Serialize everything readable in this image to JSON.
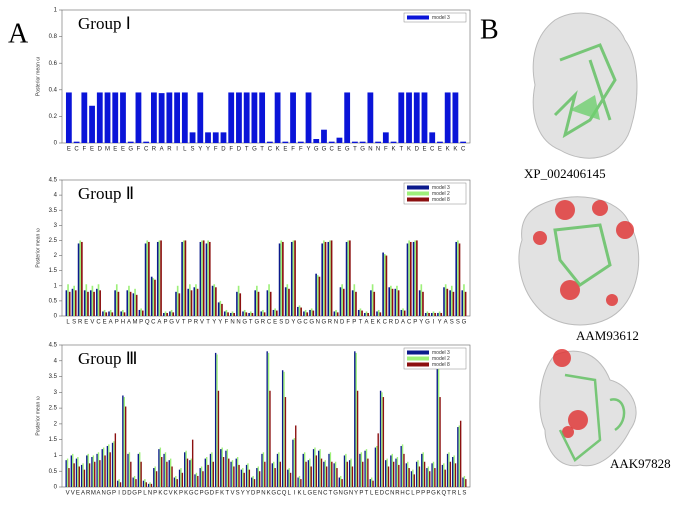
{
  "panel_labels": [
    "A",
    "B"
  ],
  "structures": [
    {
      "label": "XP_002406145"
    },
    {
      "label": "AAM93612"
    },
    {
      "label": "AAK97828"
    }
  ],
  "chart_data": [
    {
      "type": "bar",
      "title": "Group Ⅰ",
      "ylabel": "Posterior mean ω",
      "ylim": [
        0,
        1
      ],
      "yticks": [
        0,
        0.2,
        0.4,
        0.6,
        0.8,
        1
      ],
      "legend": "top-right",
      "categories": [
        "E",
        "C",
        "F",
        "E",
        "D",
        "M",
        "E",
        "E",
        "G",
        "F",
        "C",
        "R",
        "A",
        "R",
        "I",
        "L",
        "S",
        "Y",
        "Y",
        "F",
        "D",
        "F",
        "D",
        "T",
        "G",
        "T",
        "C",
        "K",
        "E",
        "F",
        "F",
        "Y",
        "G",
        "G",
        "C",
        "E",
        "G",
        "T",
        "G",
        "N",
        "N",
        "F",
        "K",
        "T",
        "K",
        "D",
        "E",
        "C",
        "E",
        "K",
        "K",
        "C"
      ],
      "series": [
        {
          "name": "model 3",
          "color": "#0a14d8",
          "values": [
            0.38,
            0.01,
            0.38,
            0.28,
            0.38,
            0.38,
            0.38,
            0.38,
            0.01,
            0.38,
            0.01,
            0.38,
            0.375,
            0.38,
            0.38,
            0.38,
            0.08,
            0.38,
            0.08,
            0.08,
            0.08,
            0.38,
            0.38,
            0.38,
            0.38,
            0.38,
            0.01,
            0.38,
            0.01,
            0.38,
            0.01,
            0.38,
            0.03,
            0.1,
            0.01,
            0.04,
            0.38,
            0.01,
            0.01,
            0.38,
            0.01,
            0.08,
            0.01,
            0.38,
            0.38,
            0.38,
            0.38,
            0.08,
            0.01,
            0.38,
            0.38,
            0.01
          ]
        }
      ]
    },
    {
      "type": "bar",
      "title": "Group Ⅱ",
      "ylabel": "Posterior mean ω",
      "ylim": [
        0,
        4.5
      ],
      "yticks": [
        0,
        0.5,
        1,
        1.5,
        2,
        2.5,
        3,
        3.5,
        4,
        4.5
      ],
      "legend": "top-right",
      "categories": [
        "L",
        "S",
        "R",
        "E",
        "V",
        "C",
        "E",
        "A",
        "P",
        "H",
        "A",
        "M",
        "P",
        "Q",
        "C",
        "A",
        "P",
        "G",
        "V",
        "T",
        "P",
        "R",
        "V",
        "T",
        "Y",
        "Y",
        "F",
        "N",
        "N",
        "G",
        "T",
        "G",
        "R",
        "C",
        "E",
        "S",
        "D",
        "Y",
        "G",
        "C",
        "G",
        "N",
        "G",
        "R",
        "N",
        "D",
        "F",
        "P",
        "T",
        "A",
        "E",
        "K",
        "C",
        "R",
        "D",
        "A",
        "C",
        "P",
        "Y",
        "G",
        "I",
        "Y",
        "A",
        "S",
        "S",
        "G"
      ],
      "series": [
        {
          "name": "model 3",
          "color": "#0b1a8c",
          "values": [
            0.85,
            0.9,
            2.4,
            0.85,
            0.85,
            0.9,
            0.15,
            0.15,
            0.85,
            0.15,
            0.85,
            0.75,
            0.2,
            2.4,
            1.3,
            2.45,
            0.1,
            0.15,
            0.8,
            2.45,
            0.9,
            0.95,
            2.45,
            2.4,
            1.0,
            0.45,
            0.15,
            0.1,
            0.8,
            0.15,
            0.1,
            0.85,
            0.15,
            0.85,
            0.2,
            2.4,
            0.95,
            2.45,
            0.3,
            0.15,
            0.2,
            1.4,
            2.4,
            2.45,
            0.15,
            0.95,
            2.45,
            0.85,
            0.2,
            0.1,
            0.85,
            0.15,
            2.1,
            0.95,
            0.9,
            0.2,
            2.4,
            2.45,
            0.85,
            0.1,
            0.1,
            0.1,
            0.95,
            0.85,
            2.45,
            0.85
          ]
        },
        {
          "name": "model 2",
          "color": "#9ef07a",
          "values": [
            1.05,
            1.0,
            2.5,
            1.05,
            1.0,
            1.05,
            0.2,
            0.2,
            1.05,
            0.2,
            1.0,
            0.9,
            0.25,
            2.5,
            1.25,
            2.5,
            0.15,
            0.2,
            1.0,
            2.5,
            1.05,
            1.05,
            2.5,
            2.5,
            1.05,
            0.5,
            0.2,
            0.15,
            1.0,
            0.2,
            0.15,
            1.0,
            0.2,
            1.05,
            0.25,
            2.5,
            1.05,
            2.5,
            0.35,
            0.2,
            0.25,
            1.35,
            2.5,
            2.5,
            0.2,
            1.05,
            2.5,
            1.05,
            0.25,
            0.15,
            1.05,
            0.2,
            2.05,
            1.0,
            1.0,
            0.25,
            2.5,
            2.5,
            1.05,
            0.15,
            0.15,
            0.15,
            1.05,
            1.0,
            2.5,
            1.05
          ]
        },
        {
          "name": "model 8",
          "color": "#8c1010",
          "values": [
            0.8,
            0.85,
            2.45,
            0.8,
            0.8,
            0.85,
            0.12,
            0.12,
            0.8,
            0.12,
            0.8,
            0.7,
            0.18,
            2.45,
            1.2,
            2.5,
            0.1,
            0.12,
            0.75,
            2.5,
            0.85,
            0.9,
            2.5,
            2.45,
            0.95,
            0.4,
            0.12,
            0.1,
            0.75,
            0.12,
            0.1,
            0.8,
            0.12,
            0.8,
            0.18,
            2.45,
            0.9,
            2.5,
            0.28,
            0.12,
            0.18,
            1.3,
            2.45,
            2.5,
            0.12,
            0.9,
            2.5,
            0.8,
            0.18,
            0.1,
            0.8,
            0.12,
            2.0,
            0.9,
            0.85,
            0.18,
            2.45,
            2.5,
            0.8,
            0.1,
            0.1,
            0.1,
            0.9,
            0.8,
            2.4,
            0.8
          ]
        }
      ]
    },
    {
      "type": "bar",
      "title": "Group Ⅲ",
      "ylabel": "Posterior mean ω",
      "ylim": [
        0,
        4.5
      ],
      "yticks": [
        0,
        0.5,
        1,
        1.5,
        2,
        2.5,
        3,
        3.5,
        4,
        4.5
      ],
      "legend": "top-right",
      "categories": [
        "V",
        "V",
        "E",
        "A",
        "R",
        "M",
        "A",
        "N",
        "G",
        "P",
        "I",
        "D",
        "D",
        "G",
        "P",
        "L",
        "N",
        "P",
        "K",
        "C",
        "V",
        "K",
        "P",
        "K",
        "G",
        "C",
        "P",
        "G",
        "D",
        "F",
        "K",
        "T",
        "V",
        "S",
        "Y",
        "Y",
        "D",
        "P",
        "N",
        "K",
        "G",
        "C",
        "Q",
        "L",
        "I",
        "K",
        "L",
        "G",
        "E",
        "N",
        "C",
        "T",
        "G",
        "N",
        "G",
        "N",
        "Y",
        "P",
        "T",
        "L",
        "E",
        "D",
        "C",
        "N",
        "R",
        "H",
        "C",
        "L",
        "P",
        "P",
        "P",
        "G",
        "K",
        "Q",
        "T",
        "R",
        "L",
        "S"
      ],
      "series": [
        {
          "name": "model 3",
          "color": "#0b1a8c",
          "values": [
            0.85,
            1.0,
            0.9,
            0.7,
            1.0,
            0.95,
            1.05,
            1.2,
            1.3,
            1.4,
            0.2,
            2.9,
            1.05,
            0.3,
            1.05,
            0.2,
            0.1,
            0.6,
            1.2,
            1.05,
            0.85,
            0.3,
            0.55,
            1.1,
            0.85,
            0.4,
            0.6,
            0.9,
            1.05,
            4.25,
            1.2,
            1.15,
            0.8,
            0.9,
            0.55,
            0.7,
            0.3,
            0.6,
            1.05,
            4.3,
            0.75,
            1.05,
            3.7,
            0.55,
            1.5,
            0.3,
            1.05,
            0.85,
            1.2,
            1.15,
            0.8,
            1.05,
            0.75,
            0.3,
            1.0,
            0.85,
            4.3,
            1.05,
            1.15,
            0.25,
            1.25,
            3.05,
            0.85,
            1.0,
            0.9,
            1.3,
            0.75,
            0.5,
            0.8,
            1.05,
            0.6,
            0.75,
            3.8,
            0.7,
            1.05,
            0.95,
            1.9,
            0.3
          ]
        },
        {
          "name": "model 2",
          "color": "#9ef07a",
          "values": [
            0.9,
            1.05,
            0.95,
            0.75,
            1.05,
            1.0,
            1.1,
            1.25,
            1.35,
            1.45,
            0.25,
            2.85,
            1.1,
            0.35,
            1.1,
            0.25,
            0.15,
            0.65,
            1.25,
            1.1,
            0.9,
            0.35,
            0.6,
            1.15,
            0.9,
            0.45,
            0.65,
            0.95,
            1.1,
            4.2,
            1.25,
            1.2,
            0.85,
            0.95,
            0.6,
            0.75,
            0.35,
            0.65,
            1.1,
            4.25,
            0.8,
            1.1,
            3.65,
            0.6,
            1.55,
            0.35,
            1.1,
            0.9,
            1.25,
            1.2,
            0.85,
            1.1,
            0.8,
            0.35,
            1.05,
            0.9,
            4.25,
            1.1,
            1.2,
            0.3,
            1.3,
            3.0,
            0.9,
            1.05,
            0.95,
            1.35,
            0.8,
            0.55,
            0.85,
            1.1,
            0.65,
            0.8,
            3.75,
            0.75,
            1.1,
            1.0,
            1.95,
            0.35
          ]
        },
        {
          "name": "model 8",
          "color": "#8c1010",
          "values": [
            0.6,
            0.75,
            0.65,
            0.55,
            0.75,
            0.8,
            0.85,
            1.0,
            1.1,
            1.7,
            0.15,
            2.55,
            0.8,
            0.25,
            0.8,
            0.15,
            0.1,
            0.5,
            0.95,
            0.8,
            0.65,
            0.25,
            0.45,
            0.9,
            1.5,
            0.35,
            0.5,
            0.7,
            0.8,
            3.05,
            0.95,
            0.9,
            0.65,
            0.7,
            0.45,
            0.55,
            0.25,
            0.5,
            0.8,
            3.05,
            0.6,
            0.8,
            2.85,
            0.45,
            1.95,
            0.25,
            0.8,
            0.65,
            1.0,
            0.9,
            0.65,
            0.8,
            0.6,
            0.25,
            0.8,
            0.65,
            3.05,
            0.8,
            0.9,
            0.2,
            1.7,
            2.85,
            0.65,
            0.8,
            0.7,
            1.05,
            0.6,
            0.4,
            0.65,
            0.8,
            0.5,
            0.6,
            2.85,
            0.55,
            0.8,
            0.75,
            2.1,
            0.25
          ]
        }
      ]
    }
  ]
}
